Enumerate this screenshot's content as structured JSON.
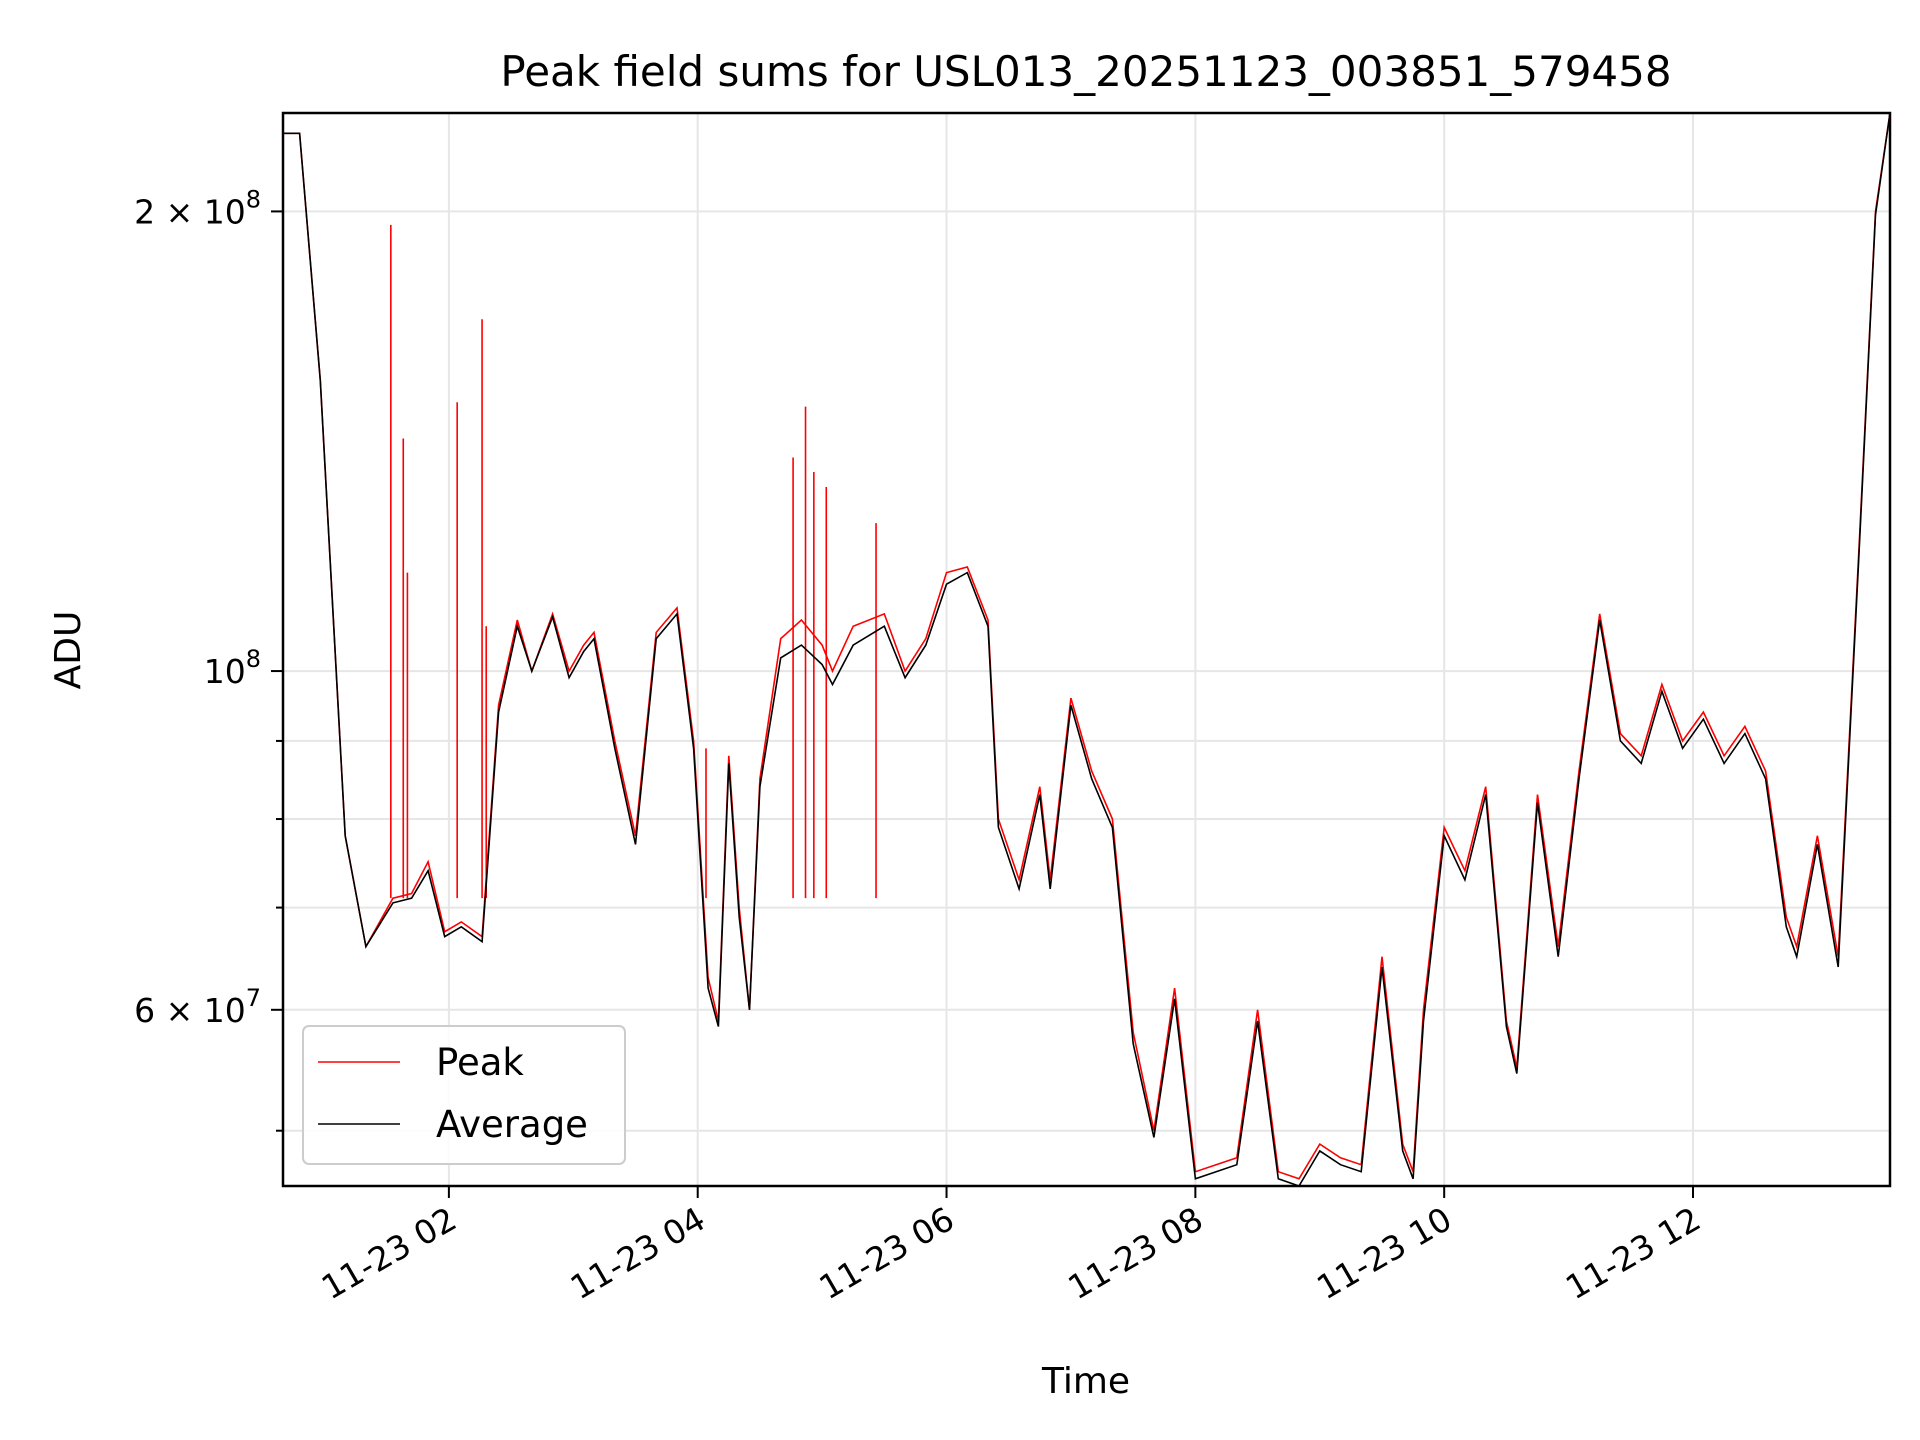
{
  "chart_data": {
    "type": "line",
    "title": "Peak field sums for USL013_20251123_003851_579458",
    "xlabel": "Time",
    "ylabel": "ADU",
    "xlim": [
      "2025-11-23 00:40",
      "2025-11-23 13:35"
    ],
    "ylim": [
      46000000,
      232000000
    ],
    "yscale": "log",
    "grid": true,
    "legend": "lower-left",
    "x_ticks": [
      {
        "label": "11-23 02",
        "value": "2025-11-23 02:00"
      },
      {
        "label": "11-23 04",
        "value": "2025-11-23 04:00"
      },
      {
        "label": "11-23 06",
        "value": "2025-11-23 06:00"
      },
      {
        "label": "11-23 08",
        "value": "2025-11-23 08:00"
      },
      {
        "label": "11-23 10",
        "value": "2025-11-23 10:00"
      },
      {
        "label": "11-23 12",
        "value": "2025-11-23 12:00"
      }
    ],
    "y_ticks": [
      {
        "label_base": "2 × 10",
        "label_exp": "8",
        "value": 200000000
      },
      {
        "label_base": "10",
        "label_exp": "8",
        "value": 100000000
      },
      {
        "label_base": "6 × 10",
        "label_exp": "7",
        "value": 60000000
      }
    ],
    "y_minor_ticks": [
      50000000,
      70000000,
      80000000,
      90000000
    ],
    "series": [
      {
        "name": "Peak",
        "color": "#ff0000",
        "x": [
          "2025-11-23 00:40",
          "2025-11-23 00:48",
          "2025-11-23 00:58",
          "2025-11-23 01:10",
          "2025-11-23 01:20",
          "2025-11-23 01:33",
          "2025-11-23 01:42",
          "2025-11-23 01:50",
          "2025-11-23 01:58",
          "2025-11-23 02:06",
          "2025-11-23 02:16",
          "2025-11-23 02:24",
          "2025-11-23 02:33",
          "2025-11-23 02:40",
          "2025-11-23 02:50",
          "2025-11-23 02:58",
          "2025-11-23 03:05",
          "2025-11-23 03:10",
          "2025-11-23 03:20",
          "2025-11-23 03:30",
          "2025-11-23 03:40",
          "2025-11-23 03:50",
          "2025-11-23 03:58",
          "2025-11-23 04:05",
          "2025-11-23 04:10",
          "2025-11-23 04:15",
          "2025-11-23 04:20",
          "2025-11-23 04:25",
          "2025-11-23 04:30",
          "2025-11-23 04:40",
          "2025-11-23 04:50",
          "2025-11-23 05:00",
          "2025-11-23 05:05",
          "2025-11-23 05:15",
          "2025-11-23 05:30",
          "2025-11-23 05:40",
          "2025-11-23 05:50",
          "2025-11-23 06:00",
          "2025-11-23 06:10",
          "2025-11-23 06:20",
          "2025-11-23 06:25",
          "2025-11-23 06:35",
          "2025-11-23 06:45",
          "2025-11-23 06:50",
          "2025-11-23 07:00",
          "2025-11-23 07:10",
          "2025-11-23 07:20",
          "2025-11-23 07:30",
          "2025-11-23 07:40",
          "2025-11-23 07:50",
          "2025-11-23 08:00",
          "2025-11-23 08:10",
          "2025-11-23 08:20",
          "2025-11-23 08:30",
          "2025-11-23 08:40",
          "2025-11-23 08:50",
          "2025-11-23 09:00",
          "2025-11-23 09:10",
          "2025-11-23 09:20",
          "2025-11-23 09:30",
          "2025-11-23 09:40",
          "2025-11-23 09:45",
          "2025-11-23 09:50",
          "2025-11-23 10:00",
          "2025-11-23 10:10",
          "2025-11-23 10:20",
          "2025-11-23 10:30",
          "2025-11-23 10:35",
          "2025-11-23 10:45",
          "2025-11-23 10:55",
          "2025-11-23 11:05",
          "2025-11-23 11:15",
          "2025-11-23 11:25",
          "2025-11-23 11:35",
          "2025-11-23 11:45",
          "2025-11-23 11:55",
          "2025-11-23 12:05",
          "2025-11-23 12:15",
          "2025-11-23 12:25",
          "2025-11-23 12:35",
          "2025-11-23 12:45",
          "2025-11-23 12:50",
          "2025-11-23 13:00",
          "2025-11-23 13:10",
          "2025-11-23 13:20",
          "2025-11-23 13:28",
          "2025-11-23 13:35"
        ],
        "values": [
          225000000,
          225000000,
          155000000,
          78000000,
          66000000,
          71000000,
          71500000,
          75000000,
          67500000,
          68500000,
          67000000,
          95000000,
          108000000,
          100000000,
          109000000,
          100000000,
          104000000,
          106000000,
          90000000,
          78000000,
          106000000,
          110000000,
          90000000,
          63000000,
          59000000,
          88000000,
          70000000,
          60000000,
          85000000,
          105000000,
          108000000,
          104000000,
          100000000,
          107000000,
          109000000,
          100000000,
          105000000,
          116000000,
          117000000,
          108000000,
          80000000,
          73000000,
          84000000,
          73000000,
          96000000,
          86000000,
          80000000,
          58000000,
          50000000,
          62000000,
          47000000,
          47500000,
          48000000,
          60000000,
          47000000,
          46500000,
          49000000,
          48000000,
          47500000,
          65000000,
          49000000,
          47000000,
          60000000,
          79000000,
          74000000,
          84000000,
          59000000,
          55000000,
          83000000,
          66000000,
          86000000,
          109000000,
          91000000,
          88000000,
          98000000,
          90000000,
          94000000,
          88000000,
          92000000,
          86000000,
          69000000,
          66000000,
          78000000,
          65000000,
          120000000,
          200000000,
          232000000
        ],
        "spikes": [
          {
            "x": "2025-11-23 01:32",
            "y": 196000000
          },
          {
            "x": "2025-11-23 01:38",
            "y": 142000000
          },
          {
            "x": "2025-11-23 01:40",
            "y": 116000000
          },
          {
            "x": "2025-11-23 02:04",
            "y": 150000000
          },
          {
            "x": "2025-11-23 02:16",
            "y": 170000000
          },
          {
            "x": "2025-11-23 02:18",
            "y": 107000000
          },
          {
            "x": "2025-11-23 04:04",
            "y": 89000000
          },
          {
            "x": "2025-11-23 04:52",
            "y": 149000000
          },
          {
            "x": "2025-11-23 04:46",
            "y": 138000000
          },
          {
            "x": "2025-11-23 04:56",
            "y": 135000000
          },
          {
            "x": "2025-11-23 05:02",
            "y": 132000000
          },
          {
            "x": "2025-11-23 05:26",
            "y": 125000000
          }
        ]
      },
      {
        "name": "Average",
        "color": "#000000",
        "x": [
          "2025-11-23 00:40",
          "2025-11-23 00:48",
          "2025-11-23 00:58",
          "2025-11-23 01:10",
          "2025-11-23 01:20",
          "2025-11-23 01:33",
          "2025-11-23 01:42",
          "2025-11-23 01:50",
          "2025-11-23 01:58",
          "2025-11-23 02:06",
          "2025-11-23 02:16",
          "2025-11-23 02:24",
          "2025-11-23 02:33",
          "2025-11-23 02:40",
          "2025-11-23 02:50",
          "2025-11-23 02:58",
          "2025-11-23 03:05",
          "2025-11-23 03:10",
          "2025-11-23 03:20",
          "2025-11-23 03:30",
          "2025-11-23 03:40",
          "2025-11-23 03:50",
          "2025-11-23 03:58",
          "2025-11-23 04:05",
          "2025-11-23 04:10",
          "2025-11-23 04:15",
          "2025-11-23 04:20",
          "2025-11-23 04:25",
          "2025-11-23 04:30",
          "2025-11-23 04:40",
          "2025-11-23 04:50",
          "2025-11-23 05:00",
          "2025-11-23 05:05",
          "2025-11-23 05:15",
          "2025-11-23 05:30",
          "2025-11-23 05:40",
          "2025-11-23 05:50",
          "2025-11-23 06:00",
          "2025-11-23 06:10",
          "2025-11-23 06:20",
          "2025-11-23 06:25",
          "2025-11-23 06:35",
          "2025-11-23 06:45",
          "2025-11-23 06:50",
          "2025-11-23 07:00",
          "2025-11-23 07:10",
          "2025-11-23 07:20",
          "2025-11-23 07:30",
          "2025-11-23 07:40",
          "2025-11-23 07:50",
          "2025-11-23 08:00",
          "2025-11-23 08:10",
          "2025-11-23 08:20",
          "2025-11-23 08:30",
          "2025-11-23 08:40",
          "2025-11-23 08:50",
          "2025-11-23 09:00",
          "2025-11-23 09:10",
          "2025-11-23 09:20",
          "2025-11-23 09:30",
          "2025-11-23 09:40",
          "2025-11-23 09:45",
          "2025-11-23 09:50",
          "2025-11-23 10:00",
          "2025-11-23 10:10",
          "2025-11-23 10:20",
          "2025-11-23 10:30",
          "2025-11-23 10:35",
          "2025-11-23 10:45",
          "2025-11-23 10:55",
          "2025-11-23 11:05",
          "2025-11-23 11:15",
          "2025-11-23 11:25",
          "2025-11-23 11:35",
          "2025-11-23 11:45",
          "2025-11-23 11:55",
          "2025-11-23 12:05",
          "2025-11-23 12:15",
          "2025-11-23 12:25",
          "2025-11-23 12:35",
          "2025-11-23 12:45",
          "2025-11-23 12:50",
          "2025-11-23 13:00",
          "2025-11-23 13:10",
          "2025-11-23 13:20",
          "2025-11-23 13:28",
          "2025-11-23 13:35"
        ],
        "values": [
          225000000,
          225000000,
          155000000,
          78000000,
          66000000,
          70500000,
          71000000,
          74000000,
          67000000,
          68000000,
          66500000,
          94000000,
          107000000,
          100000000,
          108500000,
          99000000,
          103000000,
          105000000,
          89000000,
          77000000,
          105000000,
          109000000,
          89000000,
          62000000,
          58500000,
          87000000,
          69000000,
          60000000,
          84000000,
          102000000,
          104000000,
          101000000,
          98000000,
          104000000,
          107000000,
          99000000,
          104000000,
          114000000,
          116000000,
          107000000,
          79000000,
          72000000,
          83000000,
          72000000,
          95000000,
          85000000,
          79000000,
          57000000,
          49500000,
          61000000,
          46500000,
          47000000,
          47500000,
          59000000,
          46500000,
          46000000,
          48500000,
          47500000,
          47000000,
          64000000,
          48500000,
          46500000,
          59000000,
          78000000,
          73000000,
          83000000,
          58500000,
          54500000,
          82000000,
          65000000,
          85000000,
          108000000,
          90000000,
          87000000,
          97000000,
          89000000,
          93000000,
          87000000,
          91000000,
          85000000,
          68000000,
          65000000,
          77000000,
          64000000,
          119000000,
          199000000,
          232000000
        ]
      }
    ]
  }
}
